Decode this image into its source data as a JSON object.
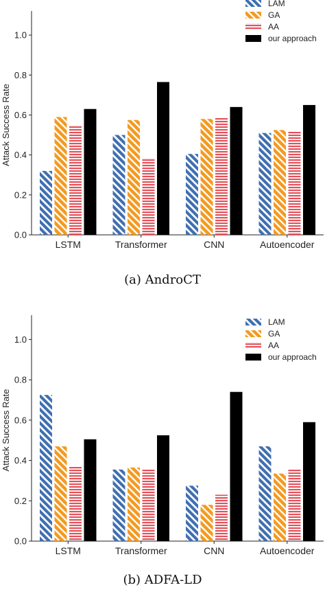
{
  "colors": {
    "LAM": "#3f6fb0",
    "GA": "#f39a22",
    "AA": "#e2515a",
    "our approach": "#5cbfbd"
  },
  "chart_data": [
    {
      "type": "bar",
      "caption": "(a) AndroCT",
      "ylabel": "Attack Success Rate",
      "ylim": [
        0,
        1.1
      ],
      "yticks": [
        "0.0",
        "0.2",
        "0.4",
        "0.6",
        "0.8",
        "1.0"
      ],
      "categories": [
        "LSTM",
        "Transformer",
        "CNN",
        "Autoencoder"
      ],
      "legend_position": "top-right",
      "series": [
        {
          "name": "LAM",
          "pattern": "diagonal",
          "values": [
            0.32,
            0.5,
            0.405,
            0.51
          ]
        },
        {
          "name": "GA",
          "pattern": "diagonal-orange",
          "values": [
            0.59,
            0.575,
            0.58,
            0.525
          ]
        },
        {
          "name": "AA",
          "pattern": "horizontal",
          "values": [
            0.55,
            0.385,
            0.585,
            0.52
          ]
        },
        {
          "name": "our approach",
          "pattern": "vertical",
          "values": [
            0.63,
            0.765,
            0.64,
            0.65
          ]
        }
      ]
    },
    {
      "type": "bar",
      "caption": "(b) ADFA-LD",
      "ylabel": "Attack Success Rate",
      "ylim": [
        0,
        1.1
      ],
      "yticks": [
        "0.0",
        "0.2",
        "0.4",
        "0.6",
        "0.8",
        "1.0"
      ],
      "categories": [
        "LSTM",
        "Transformer",
        "CNN",
        "Autoencoder"
      ],
      "legend_position": "top-right",
      "series": [
        {
          "name": "LAM",
          "pattern": "diagonal",
          "values": [
            0.725,
            0.355,
            0.275,
            0.47
          ]
        },
        {
          "name": "GA",
          "pattern": "diagonal-orange",
          "values": [
            0.47,
            0.365,
            0.18,
            0.335
          ]
        },
        {
          "name": "AA",
          "pattern": "horizontal",
          "values": [
            0.37,
            0.36,
            0.23,
            0.36
          ]
        },
        {
          "name": "our approach",
          "pattern": "vertical",
          "values": [
            0.505,
            0.525,
            0.74,
            0.59
          ]
        }
      ]
    }
  ]
}
